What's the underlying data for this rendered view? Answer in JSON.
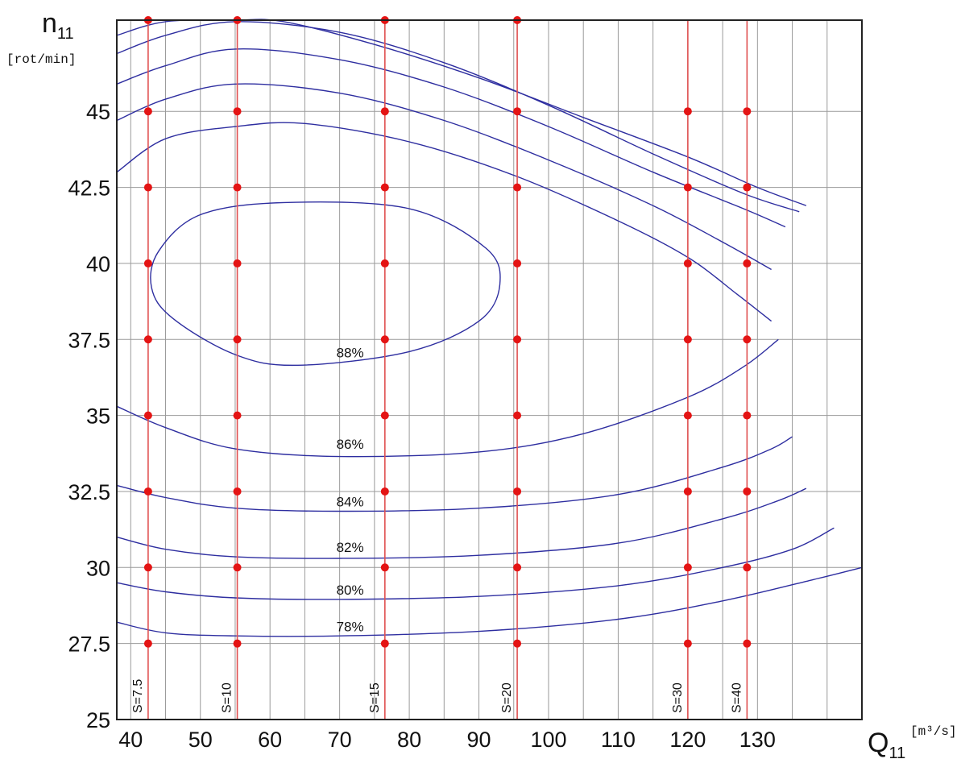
{
  "chart_data": {
    "type": "line",
    "x_label": {
      "main": "Q",
      "sub": "11",
      "unit": "[m³/s]"
    },
    "y_label": {
      "main": "n",
      "sub": "11",
      "unit": "[rot/min]"
    },
    "xlim": [
      38,
      145
    ],
    "ylim": [
      25,
      48
    ],
    "x_ticks": [
      40,
      50,
      60,
      70,
      80,
      90,
      100,
      110,
      120,
      130
    ],
    "x_tick_labels": [
      "40",
      "50",
      "60",
      "70",
      "80",
      "90",
      "100",
      "110",
      "120",
      "130"
    ],
    "y_ticks": [
      25,
      27.5,
      30,
      32.5,
      35,
      37.5,
      40,
      42.5,
      45
    ],
    "y_tick_labels": [
      "25",
      "27.5",
      "30",
      "32.5",
      "35",
      "37.5",
      "40",
      "42.5",
      "45"
    ],
    "grid": true,
    "x_minor_grid_step": 5,
    "y_grid_step": 2.5,
    "colors": {
      "curve": "#2e2ea0",
      "opening_line": "#e05050",
      "point": "#e41414",
      "grid": "#9a9a9a",
      "frame": "#222222"
    },
    "efficiency_curves": [
      {
        "label": "78%",
        "label_at": [
          71.5,
          27.8
        ],
        "points": [
          [
            38,
            28.2
          ],
          [
            45,
            27.85
          ],
          [
            55,
            27.75
          ],
          [
            70,
            27.75
          ],
          [
            90,
            27.9
          ],
          [
            110,
            28.3
          ],
          [
            125,
            28.9
          ],
          [
            138,
            29.6
          ],
          [
            145,
            30.0
          ]
        ]
      },
      {
        "label": "80%",
        "label_at": [
          71.5,
          29.0
        ],
        "points": [
          [
            38,
            29.5
          ],
          [
            45,
            29.2
          ],
          [
            55,
            29.0
          ],
          [
            70,
            28.95
          ],
          [
            90,
            29.05
          ],
          [
            110,
            29.4
          ],
          [
            125,
            30.0
          ],
          [
            135,
            30.6
          ],
          [
            141,
            31.3
          ]
        ]
      },
      {
        "label": "82%",
        "label_at": [
          71.5,
          30.4
        ],
        "points": [
          [
            38,
            31.0
          ],
          [
            45,
            30.6
          ],
          [
            55,
            30.35
          ],
          [
            70,
            30.3
          ],
          [
            90,
            30.4
          ],
          [
            110,
            30.8
          ],
          [
            125,
            31.6
          ],
          [
            133,
            32.2
          ],
          [
            137,
            32.6
          ]
        ]
      },
      {
        "label": "84%",
        "label_at": [
          71.5,
          31.9
        ],
        "points": [
          [
            38,
            32.7
          ],
          [
            45,
            32.3
          ],
          [
            55,
            31.95
          ],
          [
            70,
            31.85
          ],
          [
            90,
            31.95
          ],
          [
            110,
            32.4
          ],
          [
            125,
            33.3
          ],
          [
            132,
            33.9
          ],
          [
            135,
            34.3
          ]
        ]
      },
      {
        "label": "86%",
        "label_at": [
          71.5,
          33.8
        ],
        "points": [
          [
            38,
            35.3
          ],
          [
            45,
            34.6
          ],
          [
            55,
            33.9
          ],
          [
            70,
            33.65
          ],
          [
            90,
            33.8
          ],
          [
            105,
            34.4
          ],
          [
            120,
            35.6
          ],
          [
            128,
            36.6
          ],
          [
            133,
            37.5
          ]
        ]
      },
      {
        "label": "88%",
        "label_at": [
          71.5,
          36.8
        ],
        "closed": true,
        "points": [
          [
            64,
            36.65
          ],
          [
            80,
            37.1
          ],
          [
            90,
            38.1
          ],
          [
            93,
            39.3
          ],
          [
            91,
            40.5
          ],
          [
            80,
            41.8
          ],
          [
            62,
            42.0
          ],
          [
            50,
            41.6
          ],
          [
            44,
            40.4
          ],
          [
            43,
            39.2
          ],
          [
            46,
            38.2
          ],
          [
            55,
            37.0
          ]
        ]
      },
      {
        "label": "",
        "points": [
          [
            38,
            43.0
          ],
          [
            45,
            44.1
          ],
          [
            55,
            44.5
          ],
          [
            65,
            44.6
          ],
          [
            80,
            44.0
          ],
          [
            95,
            42.9
          ],
          [
            110,
            41.4
          ],
          [
            120,
            40.2
          ],
          [
            127,
            39.0
          ],
          [
            132,
            38.1
          ]
        ]
      },
      {
        "label": "",
        "points": [
          [
            38,
            44.7
          ],
          [
            45,
            45.4
          ],
          [
            55,
            45.9
          ],
          [
            70,
            45.6
          ],
          [
            85,
            44.7
          ],
          [
            100,
            43.4
          ],
          [
            115,
            41.9
          ],
          [
            125,
            40.7
          ],
          [
            132,
            39.8
          ]
        ]
      },
      {
        "label": "",
        "points": [
          [
            38,
            45.9
          ],
          [
            45,
            46.5
          ],
          [
            55,
            47.05
          ],
          [
            70,
            46.7
          ],
          [
            85,
            45.8
          ],
          [
            100,
            44.5
          ],
          [
            115,
            43.0
          ],
          [
            128,
            41.8
          ],
          [
            134,
            41.2
          ]
        ]
      },
      {
        "label": "",
        "points": [
          [
            38,
            46.9
          ],
          [
            45,
            47.5
          ],
          [
            55,
            47.95
          ],
          [
            70,
            47.6
          ],
          [
            85,
            46.6
          ],
          [
            100,
            45.2
          ],
          [
            115,
            43.6
          ],
          [
            128,
            42.3
          ],
          [
            136,
            41.7
          ]
        ]
      },
      {
        "label": "",
        "points": [
          [
            38,
            47.5
          ],
          [
            45,
            47.95
          ],
          [
            55,
            48.0
          ],
          [
            62,
            47.95
          ],
          [
            75,
            47.2
          ],
          [
            90,
            46.1
          ],
          [
            105,
            44.8
          ],
          [
            120,
            43.5
          ],
          [
            130,
            42.5
          ],
          [
            137,
            41.9
          ]
        ]
      }
    ],
    "opening_lines": [
      {
        "label": "S=7.5",
        "x": 42.5
      },
      {
        "label": "S=10",
        "x": 55.3
      },
      {
        "label": "S=15",
        "x": 76.5
      },
      {
        "label": "S=20",
        "x": 95.5
      },
      {
        "label": "S=30",
        "x": 120.0
      },
      {
        "label": "S=40",
        "x": 128.5
      }
    ],
    "marker_y_values": [
      27.5,
      30,
      32.5,
      35,
      37.5,
      40,
      42.5,
      45
    ],
    "marker_top_y": 48
  }
}
